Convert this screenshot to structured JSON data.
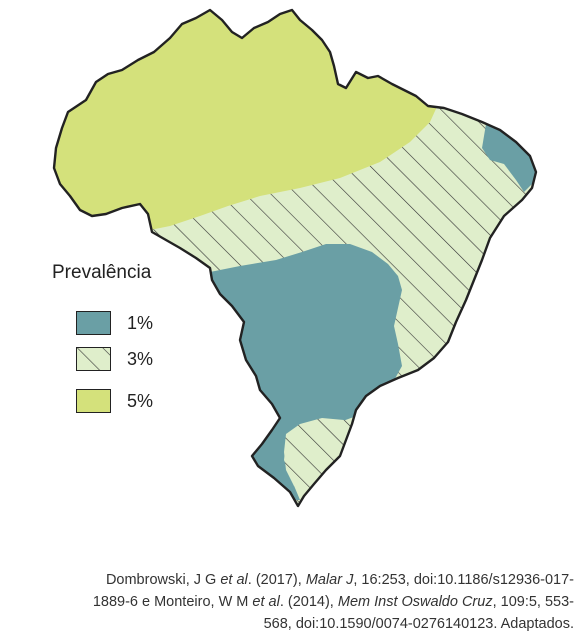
{
  "legend": {
    "title": "Prevalência",
    "items": [
      {
        "label": "1%",
        "color": "#6a9fa5",
        "pattern": "solid"
      },
      {
        "label": "3%",
        "color": "#dfeecb",
        "pattern": "hatched"
      },
      {
        "label": "5%",
        "color": "#d4e17b",
        "pattern": "solid"
      }
    ]
  },
  "citation": {
    "line1_a": "Dombrowski, J G ",
    "line1_b": "et al",
    "line1_c": ". (2017), ",
    "line1_d": "Malar J",
    "line1_e": ", 16:253, doi:10.1186/s12936-017-",
    "line2_a": "1889-6 e Monteiro, W M ",
    "line2_b": "et al",
    "line2_c": ". (2014), ",
    "line2_d": "Mem Inst Oswaldo Cruz",
    "line2_e": ", 109:5, 553-",
    "line3": "568, doi:10.1590/0074-0276140123. Adaptados."
  },
  "colors": {
    "outline": "#222222",
    "hatch_line": "#333333"
  }
}
